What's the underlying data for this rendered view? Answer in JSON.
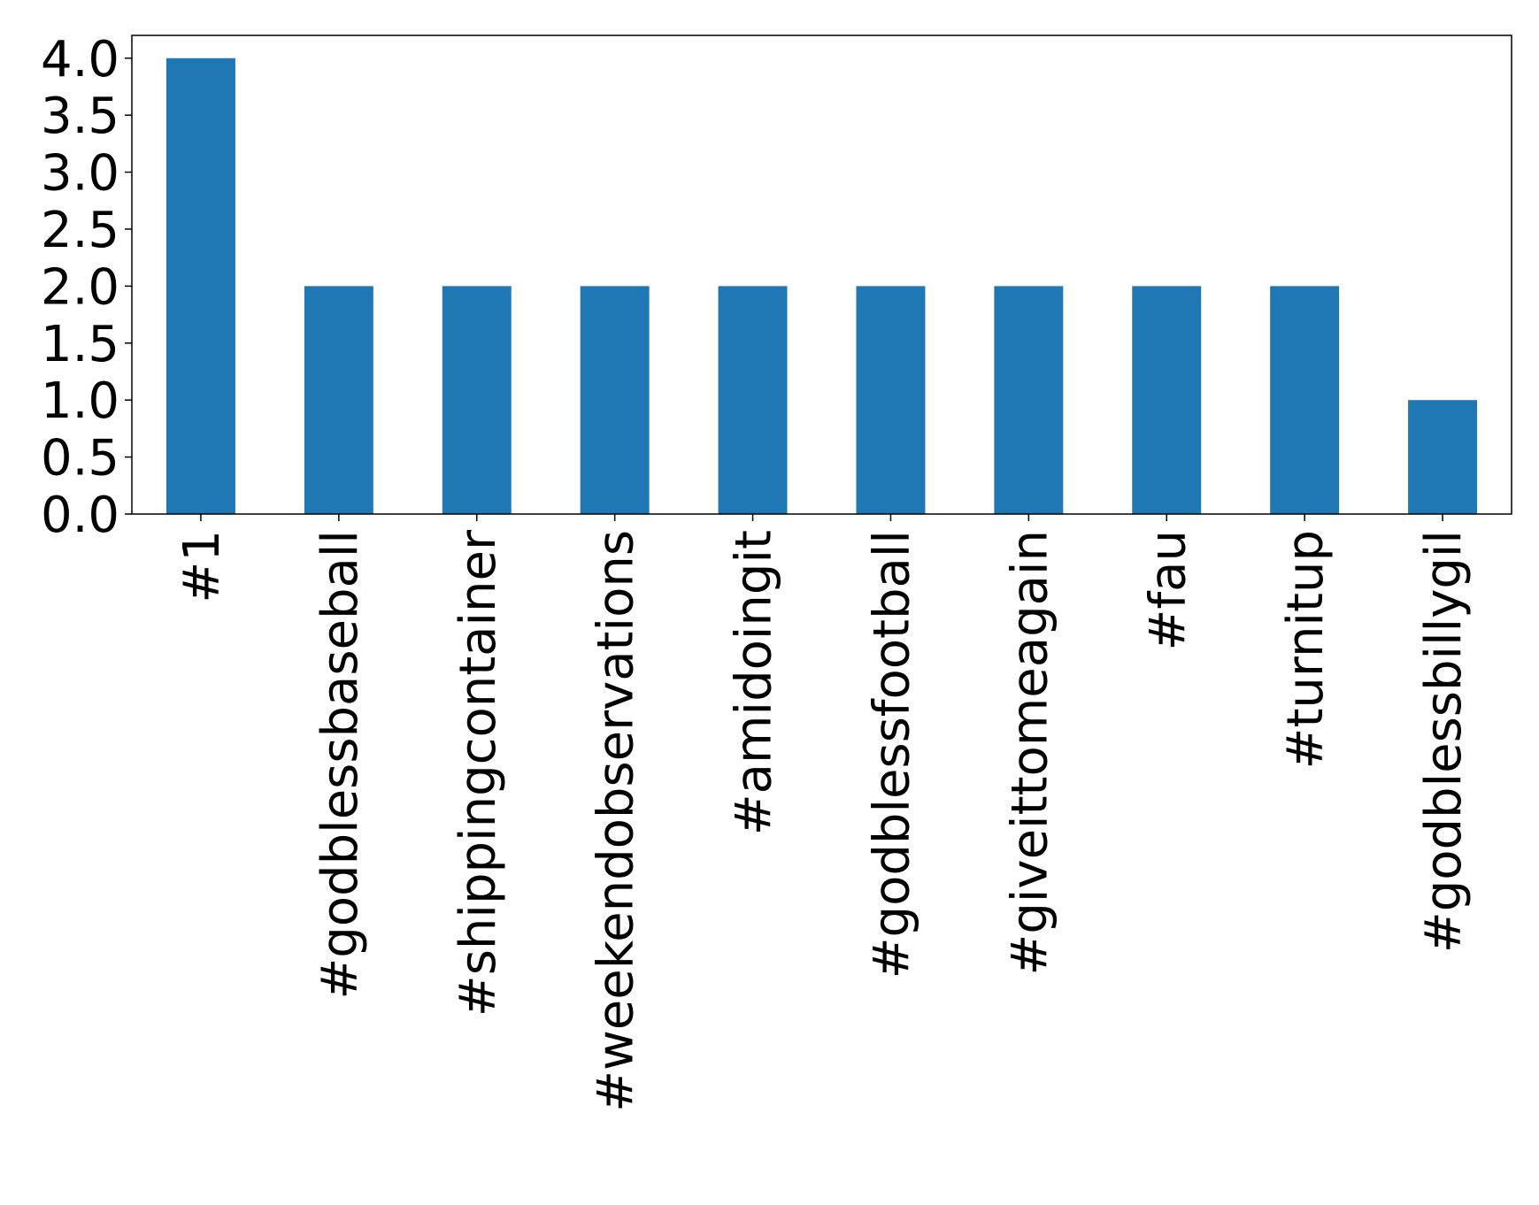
{
  "chart_data": {
    "type": "bar",
    "categories": [
      "#1",
      "#godblessbaseball",
      "#shippingcontainer",
      "#weekendobservations",
      "#amidoingit",
      "#godblessfootball",
      "#giveittomeagain",
      "#fau",
      "#turnitup",
      "#godblessbillygil"
    ],
    "values": [
      4,
      2,
      2,
      2,
      2,
      2,
      2,
      2,
      2,
      1
    ],
    "color": "#1f77b4",
    "ylim": [
      0,
      4.2
    ],
    "yticks": [
      {
        "value": 0,
        "label": "0.0"
      },
      0.5,
      {
        "value": 1,
        "label": "1.0"
      },
      1.5,
      {
        "value": 2,
        "label": "2.0"
      },
      2.5,
      {
        "value": 3,
        "label": "3.0"
      },
      3.5,
      {
        "value": 4,
        "label": "4.0"
      }
    ],
    "grid": false
  }
}
